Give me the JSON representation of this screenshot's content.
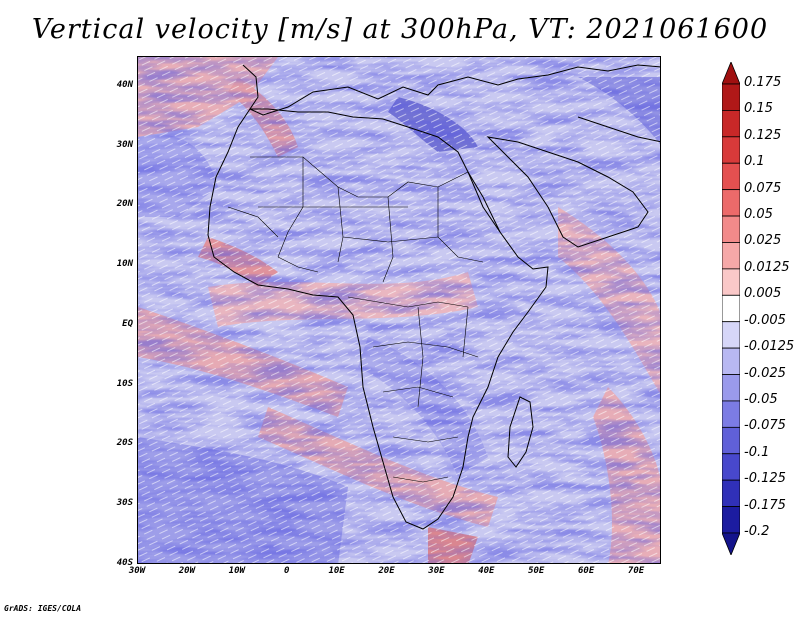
{
  "title": "Vertical velocity [m/s] at 300hPa, VT: 2021061600",
  "credit": "GrADS: IGES/COLA",
  "map": {
    "projection": "latlon",
    "lon_range": [
      -30,
      75
    ],
    "lat_range": [
      -40,
      45
    ],
    "lat_ticks": [
      "40N",
      "30N",
      "20N",
      "10N",
      "EQ",
      "10S",
      "20S",
      "30S",
      "40S"
    ],
    "lon_ticks": [
      "30W",
      "20W",
      "10W",
      "0",
      "10E",
      "20E",
      "30E",
      "40E",
      "50E",
      "60E",
      "70E"
    ],
    "field": "vertical velocity",
    "dominant_pattern": "fine-scale streaky field; blue (negative/ascent) over open ocean and subtropics, red (positive) bands along ITCZ and coastal zones"
  },
  "colorbar": {
    "levels": [
      "0.175",
      "0.15",
      "0.125",
      "0.1",
      "0.075",
      "0.05",
      "0.025",
      "0.0125",
      "0.005",
      "-0.005",
      "-0.0125",
      "-0.025",
      "-0.05",
      "-0.075",
      "-0.1",
      "-0.125",
      "-0.175",
      "-0.2"
    ],
    "colors": [
      "#b01818",
      "#c82828",
      "#d83a3a",
      "#e45050",
      "#ec6a6a",
      "#f28a8a",
      "#f6a8a8",
      "#fac8c8",
      "#ffffff",
      "#d6d6f8",
      "#b8b8f2",
      "#9a9aec",
      "#7c7ce4",
      "#6060d8",
      "#4848cc",
      "#3030b8",
      "#1c1ca0"
    ],
    "top_color": "#a01010",
    "bottom_color": "#14148c"
  }
}
